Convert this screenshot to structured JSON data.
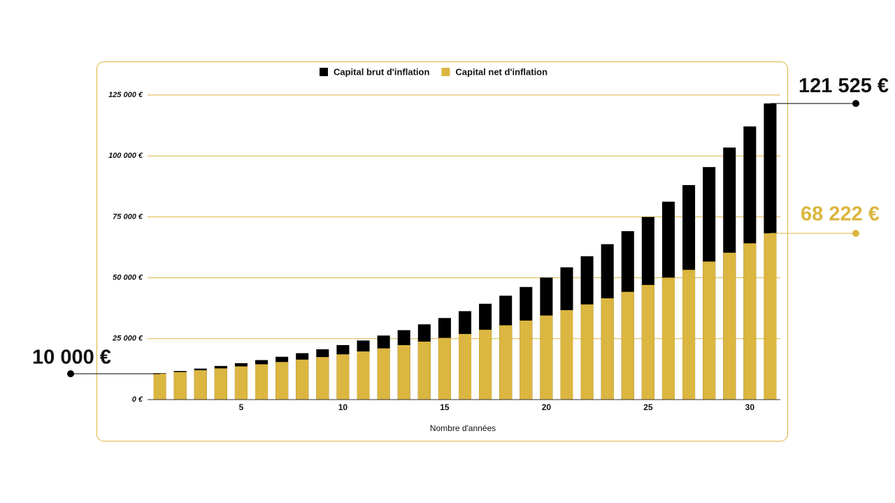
{
  "chart_data": {
    "type": "bar",
    "x_label": "Nombre d'années",
    "x": [
      1,
      2,
      3,
      4,
      5,
      6,
      7,
      8,
      9,
      10,
      11,
      12,
      13,
      14,
      15,
      16,
      17,
      18,
      19,
      20,
      21,
      22,
      23,
      24,
      25,
      26,
      27,
      28,
      29,
      30,
      31
    ],
    "xlim": [
      0.5,
      31.5
    ],
    "xticks": [
      5,
      10,
      15,
      20,
      25,
      30
    ],
    "ylim": [
      0,
      125000
    ],
    "yticks": [
      {
        "value": 0,
        "label": "0 €"
      },
      {
        "value": 25000,
        "label": "25 000 €"
      },
      {
        "value": 50000,
        "label": "50 000 €"
      },
      {
        "value": 75000,
        "label": "75 000 €"
      },
      {
        "value": 100000,
        "label": "100 000 €"
      },
      {
        "value": 125000,
        "label": "125 000 €"
      }
    ],
    "grid": true,
    "legend": "top",
    "series": [
      {
        "name": "Capital brut d'inflation",
        "color": "#000000",
        "values": [
          10839,
          11748,
          12734,
          13802,
          14960,
          16215,
          17575,
          19050,
          20648,
          22380,
          24258,
          26293,
          28499,
          30890,
          33482,
          36291,
          39336,
          42636,
          46213,
          50090,
          54293,
          58848,
          63785,
          69137,
          74938,
          81225,
          88040,
          95427,
          103433,
          112111,
          121525
        ]
      },
      {
        "name": "Capital net d'inflation",
        "color": "#dbb640",
        "values": [
          10639,
          11319,
          12042,
          12811,
          13630,
          14501,
          15428,
          16414,
          17463,
          18579,
          19766,
          21029,
          22373,
          23803,
          25324,
          26942,
          28664,
          30496,
          32445,
          34518,
          36724,
          39071,
          41568,
          44225,
          47051,
          50058,
          53257,
          56660,
          60281,
          64133,
          68222
        ]
      }
    ],
    "annotations": [
      "10 000 €",
      "121 525 €",
      "68 222 €"
    ]
  }
}
